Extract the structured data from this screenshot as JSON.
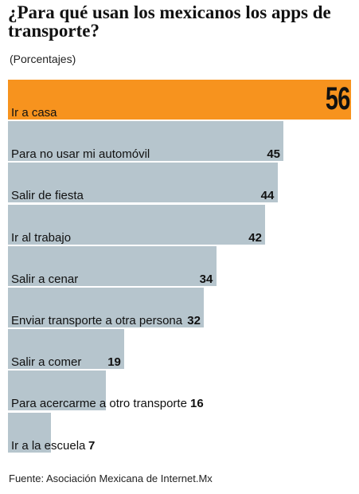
{
  "title": "¿Para qué usan los mexicanos los apps de transporte?",
  "subtitle": "(Porcentajes)",
  "source": "Fuente: Asociación Mexicana de Internet.Mx",
  "colors": {
    "highlight": "#f7931e",
    "bar": "#b6c5cd"
  },
  "chart_data": {
    "type": "bar",
    "orientation": "horizontal",
    "title": "¿Para qué usan los mexicanos los apps de transporte?",
    "subtitle": "(Porcentajes)",
    "categories": [
      "Ir a casa",
      "Para no usar mi automóvil",
      "Salir de fiesta",
      "Ir al trabajo",
      "Salir a cenar",
      "Enviar transporte a otra persona",
      "Salir a comer",
      "Para acercarme a otro transporte",
      "Ir a la escuela"
    ],
    "values": [
      56,
      45,
      44,
      42,
      34,
      32,
      19,
      16,
      7
    ],
    "xlim": [
      0,
      56
    ],
    "grid": false,
    "legend": "none"
  }
}
